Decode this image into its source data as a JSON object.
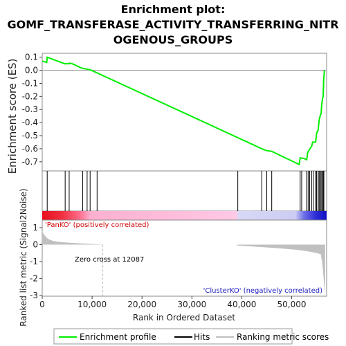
{
  "chart_data": {
    "type": "line",
    "title_lines": [
      "Enrichment plot:",
      "GOMF_TRANSFERASE_ACTIVITY_TRANSFERRING_NITR",
      "OGENOUS_GROUPS"
    ],
    "ylabel_top": "Enrichment score (ES)",
    "ylabel_bottom": "Ranked list metric (Signal2Noise)",
    "xlabel": "Rank in Ordered Dataset",
    "xlim": [
      0,
      57000
    ],
    "x_ticks": [
      {
        "value": 0,
        "label": "0"
      },
      {
        "value": 10000,
        "label": "10,000"
      },
      {
        "value": 20000,
        "label": "20,000"
      },
      {
        "value": 30000,
        "label": "30,000"
      },
      {
        "value": 40000,
        "label": "40,000"
      },
      {
        "value": 50000,
        "label": "50,000"
      }
    ],
    "es_ylim": [
      -0.77,
      0.13
    ],
    "es_ticks": [
      {
        "value": 0.1,
        "label": "0.1"
      },
      {
        "value": 0.0,
        "label": "0.0"
      },
      {
        "value": -0.1,
        "label": "-0.1"
      },
      {
        "value": -0.2,
        "label": "-0.2"
      },
      {
        "value": -0.3,
        "label": "-0.3"
      },
      {
        "value": -0.4,
        "label": "-0.4"
      },
      {
        "value": -0.5,
        "label": "-0.5"
      },
      {
        "value": -0.6,
        "label": "-0.6"
      },
      {
        "value": -0.7,
        "label": "-0.7"
      }
    ],
    "metric_ylim": [
      -3.05,
      1.45
    ],
    "metric_ticks": [
      {
        "value": 1,
        "label": "1"
      },
      {
        "value": 0,
        "label": "0"
      },
      {
        "value": -1,
        "label": "-1"
      },
      {
        "value": -2,
        "label": "-2"
      },
      {
        "value": -3,
        "label": "-3"
      }
    ],
    "series": [
      {
        "name": "Enrichment profile",
        "color": "#00ee00",
        "points": [
          [
            0,
            0.07
          ],
          [
            500,
            0.065
          ],
          [
            900,
            0.06
          ],
          [
            1000,
            0.1
          ],
          [
            4500,
            0.05
          ],
          [
            4600,
            0.05
          ],
          [
            5400,
            0.05
          ],
          [
            5500,
            0.055
          ],
          [
            6000,
            0.05
          ],
          [
            8000,
            0.015
          ],
          [
            8100,
            0.015
          ],
          [
            9000,
            0.008
          ],
          [
            9600,
            0.004
          ],
          [
            11000,
            -0.02
          ],
          [
            44000,
            -0.6
          ],
          [
            45000,
            -0.615
          ],
          [
            46000,
            -0.62
          ],
          [
            51500,
            -0.72
          ],
          [
            51700,
            -0.67
          ],
          [
            52500,
            -0.675
          ],
          [
            53000,
            -0.685
          ],
          [
            53200,
            -0.63
          ],
          [
            53500,
            -0.61
          ],
          [
            54000,
            -0.58
          ],
          [
            54200,
            -0.55
          ],
          [
            54800,
            -0.55
          ],
          [
            55000,
            -0.48
          ],
          [
            55300,
            -0.46
          ],
          [
            55500,
            -0.38
          ],
          [
            55700,
            -0.35
          ],
          [
            55900,
            -0.33
          ],
          [
            56000,
            -0.27
          ],
          [
            56150,
            -0.22
          ],
          [
            56300,
            -0.2
          ],
          [
            56400,
            -0.08
          ],
          [
            56550,
            0.0
          ]
        ]
      }
    ],
    "hits": [
      1000,
      4600,
      5400,
      8100,
      9000,
      9600,
      11000,
      39200,
      44000,
      45000,
      46000,
      51700,
      52000,
      53000,
      53300,
      53600,
      54000,
      54300,
      54800,
      55000,
      55300,
      55500,
      55700,
      55900,
      56100,
      56300,
      56450
    ],
    "zero_cross": {
      "value": 12087,
      "label": "Zero cross at 12087"
    },
    "pos_label": "'PanKO' (positively correlated)",
    "neg_label": "'ClusterKO' (negatively correlated)",
    "legend": [
      {
        "label": "Enrichment profile",
        "color": "#00ee00"
      },
      {
        "label": "Hits",
        "color": "#000000"
      },
      {
        "label": "Ranking metric scores",
        "color": "#c0c0c0"
      }
    ]
  }
}
